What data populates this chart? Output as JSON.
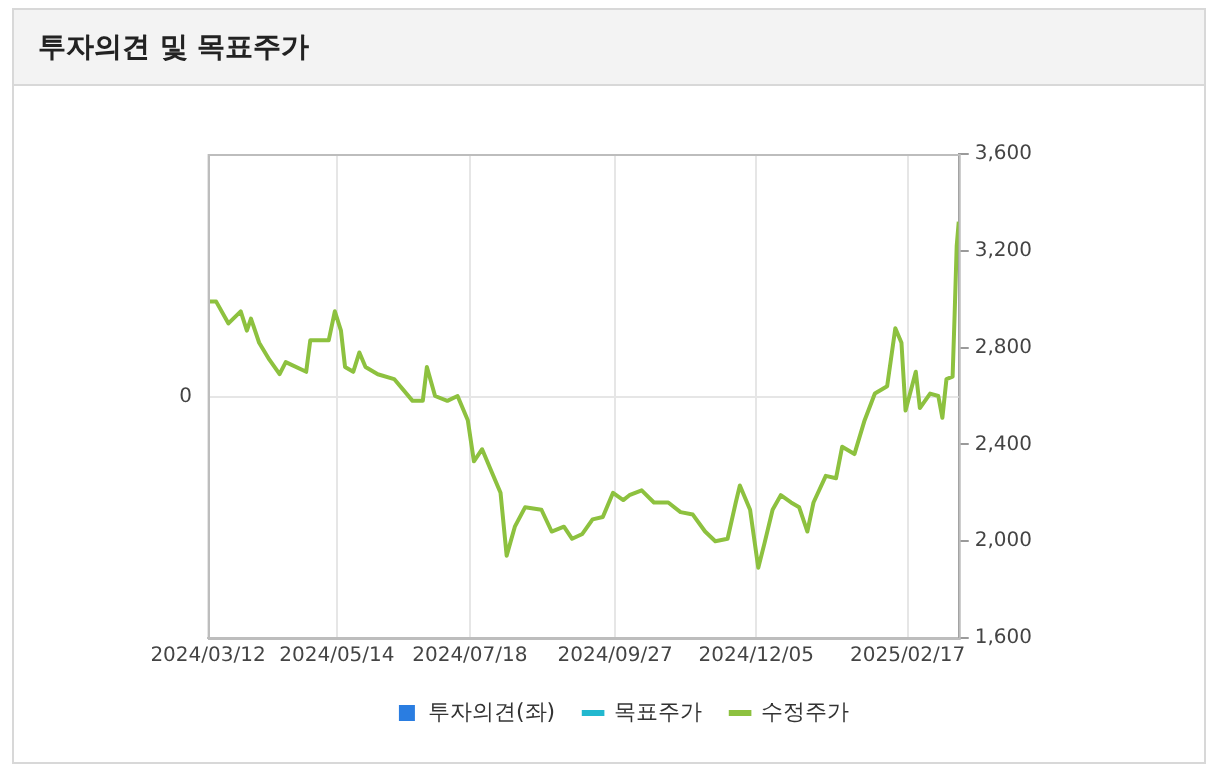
{
  "chart_data": {
    "type": "line",
    "title": "투자의견 및 목표주가",
    "x": [
      "2024-03-12",
      "2024-03-16",
      "2024-03-22",
      "2024-03-28",
      "2024-03-31",
      "2024-04-02",
      "2024-04-06",
      "2024-04-11",
      "2024-04-16",
      "2024-04-19",
      "2024-04-29",
      "2024-05-01",
      "2024-05-10",
      "2024-05-13",
      "2024-05-16",
      "2024-05-18",
      "2024-05-22",
      "2024-05-25",
      "2024-05-28",
      "2024-06-03",
      "2024-06-11",
      "2024-06-20",
      "2024-06-25",
      "2024-06-27",
      "2024-07-01",
      "2024-07-07",
      "2024-07-12",
      "2024-07-17",
      "2024-07-20",
      "2024-07-24",
      "2024-07-29",
      "2024-08-02",
      "2024-08-05",
      "2024-08-09",
      "2024-08-14",
      "2024-08-22",
      "2024-08-27",
      "2024-09-02",
      "2024-09-06",
      "2024-09-11",
      "2024-09-16",
      "2024-09-21",
      "2024-09-26",
      "2024-10-01",
      "2024-10-04",
      "2024-10-10",
      "2024-10-16",
      "2024-10-23",
      "2024-10-29",
      "2024-11-04",
      "2024-11-10",
      "2024-11-15",
      "2024-11-21",
      "2024-11-25",
      "2024-11-27",
      "2024-12-02",
      "2024-12-06",
      "2024-12-09",
      "2024-12-13",
      "2024-12-17",
      "2024-12-22",
      "2024-12-26",
      "2024-12-30",
      "2025-01-02",
      "2025-01-08",
      "2025-01-13",
      "2025-01-16",
      "2025-01-22",
      "2025-01-27",
      "2025-02-01",
      "2025-02-07",
      "2025-02-11",
      "2025-02-14",
      "2025-02-16",
      "2025-02-21",
      "2025-02-23",
      "2025-02-28",
      "2025-03-04",
      "2025-03-06",
      "2025-03-08",
      "2025-03-11",
      "2025-03-12",
      "2025-03-13",
      "2025-03-14"
    ],
    "series": [
      {
        "name": "투자의견(좌)",
        "type": "bar",
        "color": "#2a7de1",
        "values": [
          null,
          null,
          null,
          null,
          null,
          null,
          null,
          null,
          null,
          null,
          null,
          null,
          null,
          null,
          null,
          null,
          null,
          null,
          null,
          null,
          null,
          null,
          null,
          null,
          null,
          null,
          null,
          null,
          null,
          null,
          null,
          null,
          null,
          null,
          null,
          null,
          null,
          null,
          null,
          null,
          null,
          null,
          null,
          null,
          null,
          null,
          null,
          null,
          null,
          null,
          null,
          null,
          null,
          null,
          null,
          null,
          null,
          null,
          null,
          null,
          null,
          null,
          null,
          null,
          null,
          null,
          null,
          null,
          null,
          null,
          null,
          null,
          null,
          null,
          null,
          null,
          null,
          null,
          null,
          null,
          null,
          null,
          null,
          null
        ]
      },
      {
        "name": "목표주가",
        "type": "line",
        "color": "#22b8cf",
        "axis": "y2",
        "values": [
          null,
          null,
          null,
          null,
          null,
          null,
          null,
          null,
          null,
          null,
          null,
          null,
          null,
          null,
          null,
          null,
          null,
          null,
          null,
          null,
          null,
          null,
          null,
          null,
          null,
          null,
          null,
          null,
          null,
          null,
          null,
          null,
          null,
          null,
          null,
          null,
          null,
          null,
          null,
          null,
          null,
          null,
          null,
          null,
          null,
          null,
          null,
          null,
          null,
          null,
          null,
          null,
          null,
          null,
          null,
          null,
          null,
          null,
          null,
          null,
          null,
          null,
          null,
          null,
          null,
          null,
          null,
          null,
          null,
          null,
          null,
          null,
          null,
          null,
          null,
          null,
          null,
          null,
          null,
          null,
          null,
          null,
          null,
          null
        ]
      },
      {
        "name": "수정주가",
        "color": "#8dc13f",
        "axis": "y2",
        "values": [
          2990,
          2990,
          2900,
          2950,
          2870,
          2920,
          2820,
          2750,
          2690,
          2740,
          2700,
          2830,
          2830,
          2950,
          2870,
          2720,
          2700,
          2780,
          2720,
          2690,
          2670,
          2580,
          2580,
          2720,
          2600,
          2580,
          2600,
          2500,
          2330,
          2380,
          2280,
          2200,
          1940,
          2060,
          2140,
          2130,
          2040,
          2060,
          2010,
          2030,
          2090,
          2100,
          2200,
          2170,
          2190,
          2210,
          2160,
          2160,
          2120,
          2110,
          2040,
          2000,
          2010,
          2160,
          2230,
          2130,
          1890,
          1990,
          2130,
          2190,
          2160,
          2140,
          2040,
          2160,
          2270,
          2260,
          2390,
          2360,
          2500,
          2610,
          2640,
          2880,
          2820,
          2540,
          2700,
          2550,
          2610,
          2600,
          2510,
          2670,
          2680,
          2940,
          3220,
          3320
        ]
      }
    ],
    "xlim": [
      "2024-03-12",
      "2025-03-14"
    ],
    "xticks": [
      {
        "value": "2024-03-12",
        "label": "2024/03/12"
      },
      {
        "value": "2024-05-14",
        "label": "2024/05/14"
      },
      {
        "value": "2024-07-18",
        "label": "2024/07/18"
      },
      {
        "value": "2024-09-27",
        "label": "2024/09/27"
      },
      {
        "value": "2024-12-05",
        "label": "2024/12/05"
      },
      {
        "value": "2025-02-17",
        "label": "2025/02/17"
      }
    ],
    "annotations": [
      "0"
    ],
    "y2lim": [
      1600,
      3600
    ],
    "y2ticks": [
      {
        "value": 1600,
        "label": "1,600"
      },
      {
        "value": 2000,
        "label": "2,000"
      },
      {
        "value": 2400,
        "label": "2,400"
      },
      {
        "value": 2800,
        "label": "2,800"
      },
      {
        "value": 3200,
        "label": "3,200"
      },
      {
        "value": 3600,
        "label": "3,600"
      }
    ],
    "grid": true,
    "legend": "bottom",
    "marker": "none",
    "line_style": "solid"
  }
}
